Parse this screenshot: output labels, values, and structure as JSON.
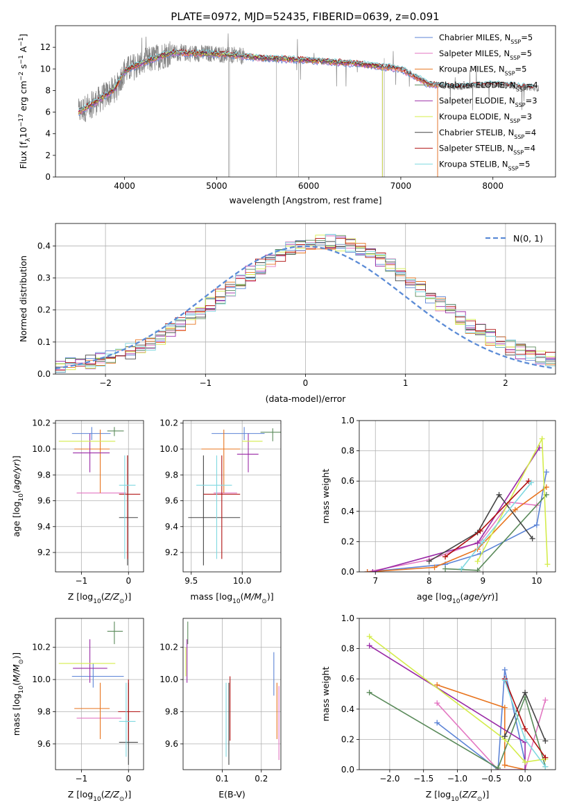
{
  "figure_title": "PLATE=0972, MJD=52435, FIBERID=0639, z=0.091",
  "colors": {
    "Chabrier MILES": "#5b83d6",
    "Salpeter MILES": "#e377c2",
    "Kroupa MILES": "#e8741e",
    "Chabrier ELODIE": "#5a8a5a",
    "Salpeter ELODIE": "#9a2aa6",
    "Kroupa ELODIE": "#d4ec4a",
    "Chabrier STELIB": "#444444",
    "Salpeter STELIB": "#b01010",
    "Kroupa STELIB": "#7fd8e0",
    "data": "#7f7f7f",
    "normal": "#5b8bd6"
  },
  "chart_data": [
    {
      "id": "spectrum",
      "type": "line",
      "xlabel": "wavelength [Angstrom, rest frame]",
      "ylabel": "Flux [f_λ10^-17 erg cm^-2 s^-1 A^-1]",
      "xlim": [
        3250,
        8680
      ],
      "ylim": [
        0,
        14
      ],
      "xticks": [
        4000,
        5000,
        6000,
        7000,
        8000
      ],
      "yticks": [
        0,
        2,
        4,
        6,
        8,
        10,
        12
      ],
      "grid": false,
      "legend_position": "top-right",
      "legend": [
        {
          "base": "Chabrier MILES, N",
          "sub": "SSP",
          "tail": "=5"
        },
        {
          "base": "Salpeter MILES, N",
          "sub": "SSP",
          "tail": "=5"
        },
        {
          "base": "Kroupa MILES, N",
          "sub": "SSP",
          "tail": "=5"
        },
        {
          "base": "Chabrier ELODIE, N",
          "sub": "SSP",
          "tail": "=4"
        },
        {
          "base": "Salpeter ELODIE, N",
          "sub": "SSP",
          "tail": "=3"
        },
        {
          "base": "Kroupa ELODIE, N",
          "sub": "SSP",
          "tail": "=3"
        },
        {
          "base": "Chabrier STELIB, N",
          "sub": "SSP",
          "tail": "=4"
        },
        {
          "base": "Salpeter STELIB, N",
          "sub": "SSP",
          "tail": "=4"
        },
        {
          "base": "Kroupa STELIB, N",
          "sub": "SSP",
          "tail": "=5"
        }
      ],
      "continuum_x": [
        3500,
        3700,
        3900,
        4000,
        4200,
        4500,
        5000,
        5500,
        6000,
        6500,
        7000,
        7300,
        7600,
        8000,
        8500
      ],
      "continuum_y": [
        6.0,
        7.0,
        8.2,
        9.8,
        10.6,
        11.5,
        11.4,
        11.0,
        10.8,
        10.5,
        10.0,
        8.6,
        8.3,
        8.6,
        8.2
      ]
    },
    {
      "id": "residuals",
      "type": "histogram",
      "xlabel": "(data-model)/error",
      "ylabel": "Normed distribution",
      "xlim": [
        -2.5,
        2.5
      ],
      "ylim": [
        0,
        0.47
      ],
      "xticks": [
        -2,
        -1,
        0,
        1,
        2
      ],
      "yticks": [
        0.0,
        0.1,
        0.2,
        0.3,
        0.4
      ],
      "grid": true,
      "legend_position": "top-right",
      "legend_label": "N(0, 1)",
      "bin_width": 0.1
    },
    {
      "id": "age_vs_Z",
      "type": "errorbar",
      "xlabel": "Z [log10(Z/Z⊙)]",
      "ylabel": "age [log10(age/yr)]",
      "xlim": [
        -1.55,
        0.32
      ],
      "ylim": [
        9.05,
        10.22
      ],
      "xticks": [
        -1,
        0
      ],
      "yticks": [
        9.2,
        9.4,
        9.6,
        9.8,
        10.0,
        10.2
      ],
      "grid": true,
      "points": [
        {
          "series": "Chabrier MILES",
          "x": -0.78,
          "xlo": -1.2,
          "xhi": -0.38,
          "y": 10.12,
          "ylo": 10.07,
          "yhi": 10.17
        },
        {
          "series": "Salpeter MILES",
          "x": -0.6,
          "xlo": -1.1,
          "xhi": -0.05,
          "y": 9.66,
          "ylo": 9.66,
          "yhi": 9.66
        },
        {
          "series": "Kroupa MILES",
          "x": -0.6,
          "xlo": -1.15,
          "xhi": -0.4,
          "y": 10.0,
          "ylo": 9.66,
          "yhi": 10.15
        },
        {
          "series": "Chabrier ELODIE",
          "x": -0.3,
          "xlo": -0.45,
          "xhi": -0.1,
          "y": 10.14,
          "ylo": 10.1,
          "yhi": 10.17
        },
        {
          "series": "Salpeter ELODIE",
          "x": -0.82,
          "xlo": -1.18,
          "xhi": -0.4,
          "y": 9.97,
          "ylo": 9.82,
          "yhi": 10.12
        },
        {
          "series": "Kroupa ELODIE",
          "x": -0.9,
          "xlo": -1.48,
          "xhi": -0.28,
          "y": 10.06,
          "ylo": 10.06,
          "yhi": 10.06
        },
        {
          "series": "Chabrier STELIB",
          "x": -0.02,
          "xlo": -0.2,
          "xhi": 0.2,
          "y": 9.47,
          "ylo": 9.1,
          "yhi": 9.95
        },
        {
          "series": "Salpeter STELIB",
          "x": -0.02,
          "xlo": -0.2,
          "xhi": 0.25,
          "y": 9.65,
          "ylo": 9.15,
          "yhi": 9.95
        },
        {
          "series": "Kroupa STELIB",
          "x": -0.08,
          "xlo": -0.2,
          "xhi": 0.15,
          "y": 9.72,
          "ylo": 9.15,
          "yhi": 9.95
        }
      ]
    },
    {
      "id": "age_vs_mass",
      "type": "errorbar",
      "xlabel": "mass [log10(M/M⊙)]",
      "ylabel": "",
      "xlim": [
        9.42,
        10.38
      ],
      "ylim": [
        9.05,
        10.22
      ],
      "xticks": [
        9.5,
        10.0
      ],
      "yticks": [
        9.2,
        9.4,
        9.6,
        9.8,
        10.0,
        10.2
      ],
      "grid": true,
      "points": [
        {
          "series": "Chabrier MILES",
          "x": 10.02,
          "xlo": 9.7,
          "xhi": 10.22,
          "y": 10.12,
          "ylo": 10.07,
          "yhi": 10.17
        },
        {
          "series": "Salpeter MILES",
          "x": 9.85,
          "xlo": 9.72,
          "xhi": 9.95,
          "y": 9.66,
          "ylo": 9.66,
          "yhi": 9.66
        },
        {
          "series": "Kroupa MILES",
          "x": 9.82,
          "xlo": 9.6,
          "xhi": 9.98,
          "y": 10.0,
          "ylo": 9.66,
          "yhi": 10.15
        },
        {
          "series": "Chabrier ELODIE",
          "x": 10.3,
          "xlo": 10.18,
          "xhi": 10.38,
          "y": 10.13,
          "ylo": 10.06,
          "yhi": 10.16
        },
        {
          "series": "Salpeter ELODIE",
          "x": 10.06,
          "xlo": 9.95,
          "xhi": 10.16,
          "y": 9.96,
          "ylo": 9.82,
          "yhi": 10.12
        },
        {
          "series": "Kroupa ELODIE",
          "x": 10.1,
          "xlo": 10.0,
          "xhi": 10.2,
          "y": 10.06,
          "ylo": 10.06,
          "yhi": 10.06
        },
        {
          "series": "Chabrier STELIB",
          "x": 9.62,
          "xlo": 9.47,
          "xhi": 9.98,
          "y": 9.47,
          "ylo": 9.1,
          "yhi": 9.95
        },
        {
          "series": "Salpeter STELIB",
          "x": 9.8,
          "xlo": 9.62,
          "xhi": 9.98,
          "y": 9.65,
          "ylo": 9.15,
          "yhi": 9.95
        },
        {
          "series": "Kroupa STELIB",
          "x": 9.75,
          "xlo": 9.55,
          "xhi": 9.9,
          "y": 9.72,
          "ylo": 9.15,
          "yhi": 9.95
        }
      ]
    },
    {
      "id": "weight_vs_age",
      "type": "line",
      "xlabel": "age [log10(age/yr)]",
      "ylabel": "mass weight",
      "xlim": [
        6.7,
        10.35
      ],
      "ylim": [
        0,
        1.0
      ],
      "xticks": [
        7,
        8,
        9,
        10
      ],
      "yticks": [
        0.0,
        0.2,
        0.4,
        0.6,
        0.8,
        1.0
      ],
      "grid": true,
      "series": [
        {
          "name": "Chabrier MILES",
          "x": [
            6.85,
            8.3,
            8.95,
            10.0,
            10.18
          ],
          "y": [
            0.0,
            0.05,
            0.12,
            0.31,
            0.66
          ]
        },
        {
          "name": "Salpeter MILES",
          "x": [
            6.85,
            8.0,
            8.95,
            9.5,
            10.0
          ],
          "y": [
            0.0,
            0.08,
            0.2,
            0.46,
            0.44
          ]
        },
        {
          "name": "Kroupa MILES",
          "x": [
            6.85,
            8.1,
            8.9,
            9.6,
            10.18
          ],
          "y": [
            0.0,
            0.03,
            0.15,
            0.41,
            0.56
          ]
        },
        {
          "name": "Chabrier ELODIE",
          "x": [
            8.3,
            8.9,
            10.18
          ],
          "y": [
            0.02,
            0.01,
            0.51
          ]
        },
        {
          "name": "Salpeter ELODIE",
          "x": [
            6.95,
            8.9,
            10.05
          ],
          "y": [
            0.0,
            0.19,
            0.82
          ]
        },
        {
          "name": "Kroupa ELODIE",
          "x": [
            8.9,
            10.1,
            10.2
          ],
          "y": [
            0.07,
            0.88,
            0.05
          ]
        },
        {
          "name": "Chabrier STELIB",
          "x": [
            8.0,
            8.9,
            9.3,
            9.92
          ],
          "y": [
            0.07,
            0.26,
            0.51,
            0.22
          ]
        },
        {
          "name": "Salpeter STELIB",
          "x": [
            8.3,
            8.95,
            9.85
          ],
          "y": [
            0.1,
            0.27,
            0.6
          ]
        },
        {
          "name": "Kroupa STELIB",
          "x": [
            8.6,
            9.0,
            9.9
          ],
          "y": [
            0.02,
            0.2,
            0.59
          ]
        }
      ]
    },
    {
      "id": "mass_vs_Z",
      "type": "errorbar",
      "xlabel": "Z [log10(Z/Z⊙)]",
      "ylabel": "mass [log10(M/M⊙)]",
      "xlim": [
        -1.55,
        0.32
      ],
      "ylim": [
        9.44,
        10.38
      ],
      "xticks": [
        -1,
        0
      ],
      "yticks": [
        9.6,
        9.8,
        10.0,
        10.2
      ],
      "grid": true,
      "points": [
        {
          "series": "Chabrier MILES",
          "x": -0.75,
          "xlo": -1.2,
          "xhi": -0.1,
          "y": 10.02,
          "ylo": 9.95,
          "yhi": 10.1
        },
        {
          "series": "Salpeter MILES",
          "x": -0.55,
          "xlo": -1.1,
          "xhi": -0.15,
          "y": 9.76,
          "ylo": 9.76,
          "yhi": 9.76
        },
        {
          "series": "Kroupa MILES",
          "x": -0.6,
          "xlo": -1.15,
          "xhi": -0.4,
          "y": 9.82,
          "ylo": 9.63,
          "yhi": 9.98
        },
        {
          "series": "Chabrier ELODIE",
          "x": -0.3,
          "xlo": -0.45,
          "xhi": -0.12,
          "y": 10.3,
          "ylo": 10.22,
          "yhi": 10.36
        },
        {
          "series": "Salpeter ELODIE",
          "x": -0.82,
          "xlo": -1.18,
          "xhi": -0.45,
          "y": 10.07,
          "ylo": 9.98,
          "yhi": 10.25
        },
        {
          "series": "Kroupa ELODIE",
          "x": -0.9,
          "xlo": -1.48,
          "xhi": -0.28,
          "y": 10.1,
          "ylo": 10.1,
          "yhi": 10.1
        },
        {
          "series": "Chabrier STELIB",
          "x": 0.0,
          "xlo": -0.2,
          "xhi": 0.2,
          "y": 9.61,
          "ylo": 9.47,
          "yhi": 9.98
        },
        {
          "series": "Salpeter STELIB",
          "x": 0.0,
          "xlo": -0.22,
          "xhi": 0.25,
          "y": 9.8,
          "ylo": 9.62,
          "yhi": 10.0
        },
        {
          "series": "Kroupa STELIB",
          "x": -0.05,
          "xlo": -0.2,
          "xhi": 0.15,
          "y": 9.74,
          "ylo": 9.52,
          "yhi": 9.98
        }
      ]
    },
    {
      "id": "mass_vs_ebv",
      "type": "errorbar",
      "xlabel": "E(B-V)",
      "ylabel": "",
      "xlim": [
        0.0,
        0.25
      ],
      "ylim": [
        9.44,
        10.38
      ],
      "xticks": [
        0.1,
        0.2
      ],
      "yticks": [
        9.6,
        9.8,
        10.0,
        10.2
      ],
      "grid": true,
      "points": [
        {
          "series": "Chabrier MILES",
          "x": 0.232,
          "xlo": 0.232,
          "xhi": 0.232,
          "y": 10.02,
          "ylo": 9.9,
          "yhi": 10.17
        },
        {
          "series": "Salpeter MILES",
          "x": 0.245,
          "xlo": 0.245,
          "xhi": 0.245,
          "y": 9.76,
          "ylo": 9.5,
          "yhi": 9.96
        },
        {
          "series": "Kroupa MILES",
          "x": 0.24,
          "xlo": 0.24,
          "xhi": 0.24,
          "y": 9.82,
          "ylo": 9.63,
          "yhi": 9.98
        },
        {
          "series": "Chabrier ELODIE",
          "x": 0.012,
          "xlo": 0.012,
          "xhi": 0.012,
          "y": 10.3,
          "ylo": 10.22,
          "yhi": 10.36
        },
        {
          "series": "Salpeter ELODIE",
          "x": 0.01,
          "xlo": 0.01,
          "xhi": 0.01,
          "y": 10.07,
          "ylo": 9.98,
          "yhi": 10.25
        },
        {
          "series": "Kroupa ELODIE",
          "x": 0.007,
          "xlo": 0.007,
          "xhi": 0.007,
          "y": 10.1,
          "ylo": 10.02,
          "yhi": 10.2
        },
        {
          "series": "Chabrier STELIB",
          "x": 0.117,
          "xlo": 0.117,
          "xhi": 0.117,
          "y": 9.61,
          "ylo": 9.47,
          "yhi": 9.98
        },
        {
          "series": "Salpeter STELIB",
          "x": 0.12,
          "xlo": 0.12,
          "xhi": 0.12,
          "y": 9.8,
          "ylo": 9.62,
          "yhi": 10.02
        },
        {
          "series": "Kroupa STELIB",
          "x": 0.11,
          "xlo": 0.11,
          "xhi": 0.11,
          "y": 9.74,
          "ylo": 9.52,
          "yhi": 9.98
        }
      ]
    },
    {
      "id": "weight_vs_Z",
      "type": "line",
      "xlabel": "Z [log10(Z/Z⊙)]",
      "ylabel": "mass weight",
      "xlim": [
        -2.45,
        0.45
      ],
      "ylim": [
        0,
        1.0
      ],
      "xticks": [
        -2.0,
        -1.5,
        -1.0,
        -0.5,
        0.0
      ],
      "yticks": [
        0.0,
        0.2,
        0.4,
        0.6,
        0.8,
        1.0
      ],
      "grid": true,
      "series": [
        {
          "name": "Chabrier MILES",
          "x": [
            -1.3,
            -0.4,
            -0.3,
            0.0
          ],
          "y": [
            0.31,
            0.0,
            0.66,
            0.05
          ]
        },
        {
          "name": "Salpeter MILES",
          "x": [
            -1.3,
            -0.4,
            0.0,
            0.3
          ],
          "y": [
            0.44,
            0.0,
            0.0,
            0.46
          ]
        },
        {
          "name": "Kroupa MILES",
          "x": [
            -1.3,
            -0.3,
            -0.3,
            0.0
          ],
          "y": [
            0.56,
            0.41,
            0.03,
            0.0
          ]
        },
        {
          "name": "Chabrier ELODIE",
          "x": [
            -2.3,
            -0.4,
            0.0,
            0.3
          ],
          "y": [
            0.51,
            0.01,
            0.48,
            0.02
          ]
        },
        {
          "name": "Salpeter ELODIE",
          "x": [
            -2.3,
            0.0,
            0.0
          ],
          "y": [
            0.82,
            0.18,
            0.0
          ]
        },
        {
          "name": "Kroupa ELODIE",
          "x": [
            -2.3,
            -0.3,
            0.0,
            0.3
          ],
          "y": [
            0.88,
            0.2,
            0.05,
            0.07
          ]
        },
        {
          "name": "Chabrier STELIB",
          "x": [
            -0.3,
            0.0,
            0.3
          ],
          "y": [
            0.22,
            0.51,
            0.19
          ]
        },
        {
          "name": "Salpeter STELIB",
          "x": [
            -0.3,
            0.0,
            0.3
          ],
          "y": [
            0.6,
            0.27,
            0.08
          ]
        },
        {
          "name": "Kroupa STELIB",
          "x": [
            -0.3,
            0.0,
            0.3
          ],
          "y": [
            0.59,
            0.2,
            0.02
          ]
        }
      ]
    }
  ]
}
